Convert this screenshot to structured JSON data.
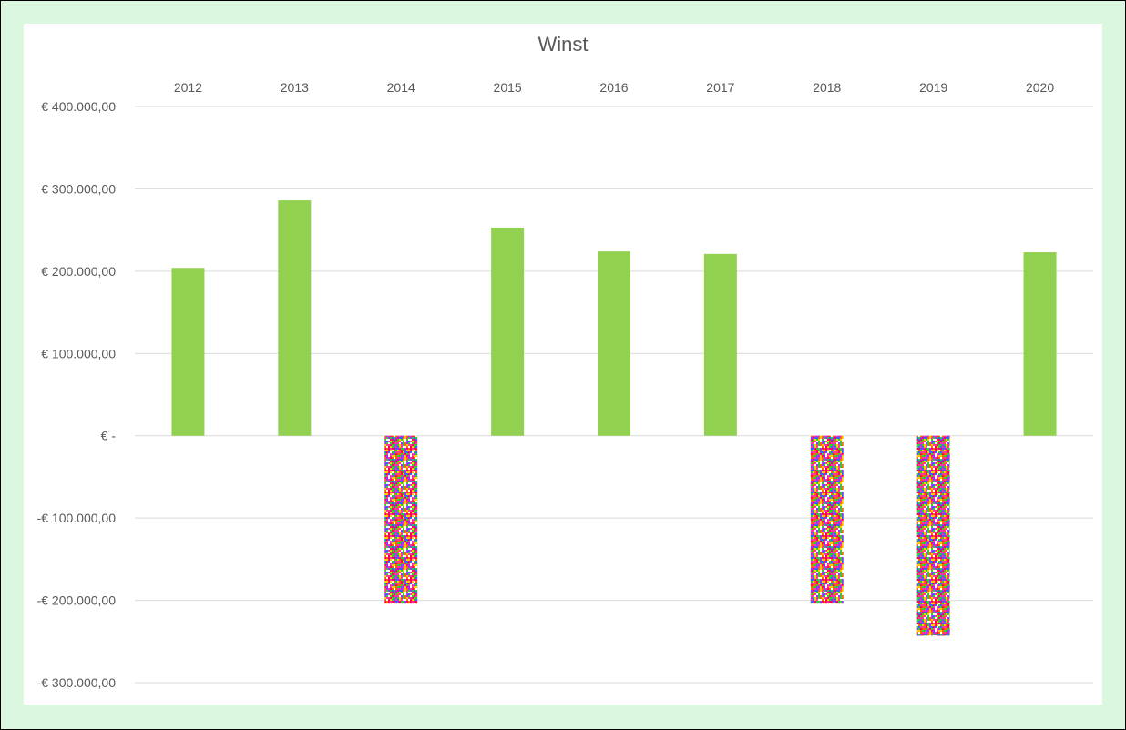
{
  "chart_data": {
    "type": "bar",
    "title": "Winst",
    "categories": [
      "2012",
      "2013",
      "2014",
      "2015",
      "2016",
      "2017",
      "2018",
      "2019",
      "2020"
    ],
    "values": [
      204000,
      286000,
      -204000,
      253000,
      224000,
      221000,
      -204000,
      -243000,
      223000
    ],
    "ylim": [
      -300000,
      400000
    ],
    "yticks": [
      400000,
      300000,
      200000,
      100000,
      0,
      -100000,
      -200000,
      -300000
    ],
    "ytick_labels": [
      "€ 400.000,00",
      "€ 300.000,00",
      "€ 200.000,00",
      "€ 100.000,00",
      "€ -",
      "-€ 100.000,00",
      "-€ 200.000,00",
      "-€ 300.000,00"
    ],
    "xaxis_position": "top",
    "grid": true,
    "colors": {
      "positive": "#92d050",
      "negative_pattern": [
        "#ff0066",
        "#ff3399",
        "#ffcc00",
        "#33cc33",
        "#3366ff",
        "#9933ff",
        "#ffffff",
        "#ff6600"
      ],
      "gridline": "#d9d9d9",
      "text": "#595959"
    }
  }
}
